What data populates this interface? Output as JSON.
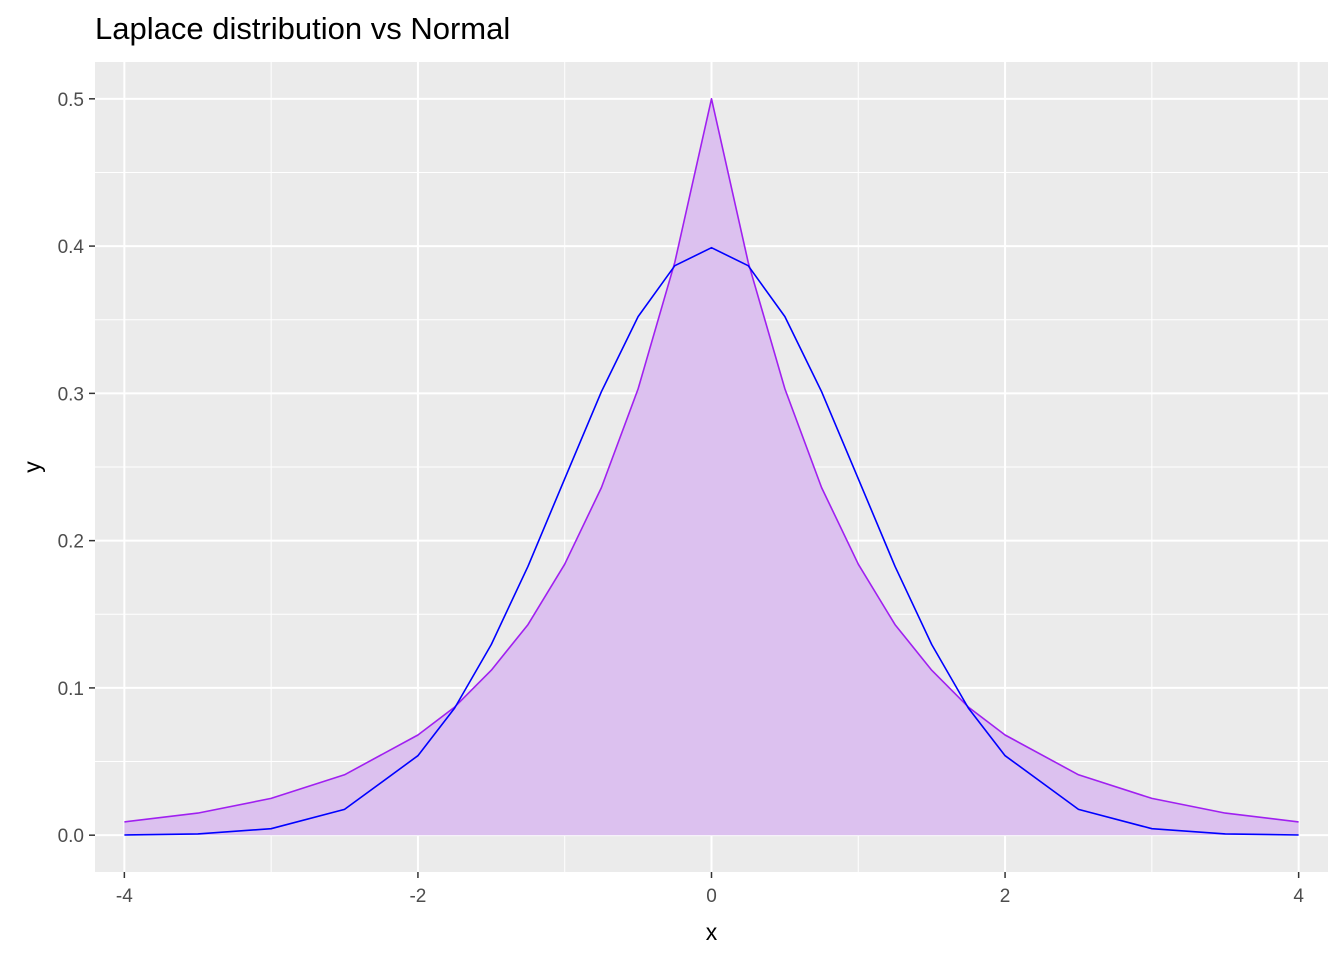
{
  "chart_data": {
    "type": "area",
    "title": "Laplace distribution vs Normal",
    "xlabel": "x",
    "ylabel": "y",
    "xlim": [
      -4.2,
      4.2
    ],
    "ylim": [
      -0.025,
      0.525
    ],
    "x_ticks": [
      -4,
      -2,
      0,
      2,
      4
    ],
    "x_tick_labels": [
      "-4",
      "-2",
      "0",
      "2",
      "4"
    ],
    "y_ticks": [
      0.0,
      0.1,
      0.2,
      0.3,
      0.4,
      0.5
    ],
    "y_tick_labels": [
      "0.0",
      "0.1",
      "0.2",
      "0.3",
      "0.4",
      "0.5"
    ],
    "grid": true,
    "background": "#ebebeb",
    "grid_color": "#ffffff",
    "x": [
      -4.0,
      -3.5,
      -3.0,
      -2.5,
      -2.0,
      -1.75,
      -1.5,
      -1.25,
      -1.0,
      -0.75,
      -0.5,
      -0.25,
      0.0,
      0.25,
      0.5,
      0.75,
      1.0,
      1.25,
      1.5,
      1.75,
      2.0,
      2.5,
      3.0,
      3.5,
      4.0
    ],
    "series": [
      {
        "style": "filled-area",
        "line_color": "#a020f0",
        "fill_color": "#dcc1ef",
        "values": [
          0.009,
          0.015,
          0.025,
          0.041,
          0.068,
          0.087,
          0.112,
          0.143,
          0.184,
          0.236,
          0.303,
          0.389,
          0.5,
          0.389,
          0.303,
          0.236,
          0.184,
          0.143,
          0.112,
          0.087,
          0.068,
          0.041,
          0.025,
          0.015,
          0.009
        ]
      },
      {
        "style": "line",
        "line_color": "#0000ff",
        "values": [
          0.0001,
          0.0009,
          0.0044,
          0.0175,
          0.054,
          0.0863,
          0.1295,
          0.1826,
          0.242,
          0.3011,
          0.3521,
          0.3867,
          0.3989,
          0.3867,
          0.3521,
          0.3011,
          0.242,
          0.1826,
          0.1295,
          0.0863,
          0.054,
          0.0175,
          0.0044,
          0.0009,
          0.0001
        ]
      }
    ]
  }
}
